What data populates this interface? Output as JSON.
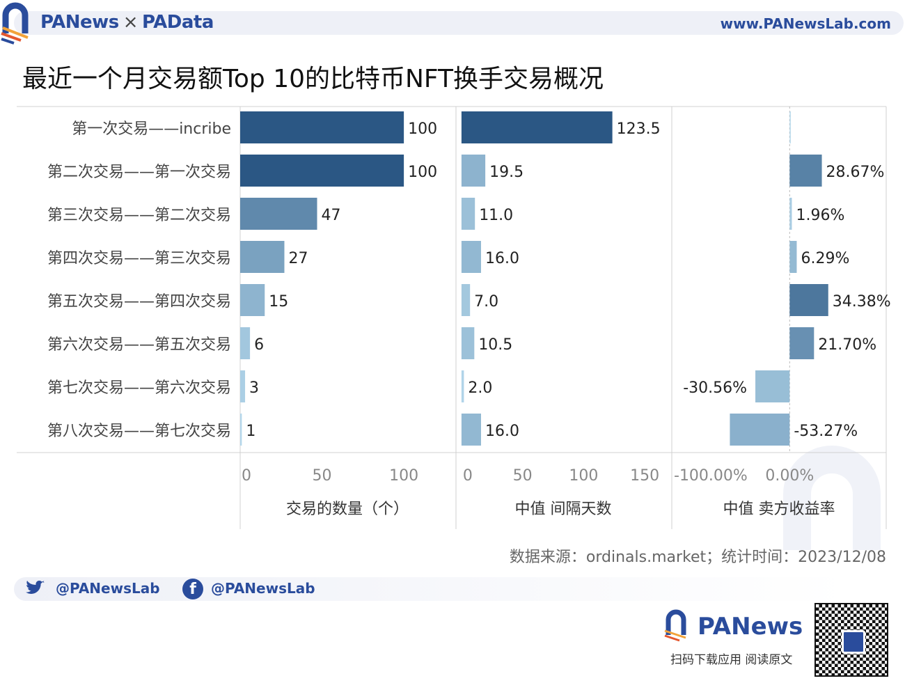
{
  "header": {
    "brand_left": "PANews",
    "separator": "×",
    "brand_right": "PAData",
    "website": "www.PANewsLab.com"
  },
  "title": "最近一个月交易额Top 10的比特币NFT换手交易概况",
  "watermarks": [
    "PANews",
    "PAData"
  ],
  "colors": {
    "dark": "#2b5784",
    "light": "#bde0f2",
    "brand": "#2a4c9c",
    "grid": "#d0d0d0"
  },
  "chart_data": {
    "type": "bar",
    "orientation": "horizontal",
    "categories": [
      "第一次交易——incribe",
      "第二次交易——第一次交易",
      "第三次交易——第二次交易",
      "第四次交易——第三次交易",
      "第五次交易——第四次交易",
      "第六次交易——第五次交易",
      "第七次交易——第六次交易",
      "第八次交易——第七次交易"
    ],
    "panels": [
      {
        "xlabel": "交易的数量（个）",
        "ticks": [
          0,
          50,
          100
        ],
        "tick_labels": [
          "0",
          "50",
          "100"
        ],
        "xlim": [
          0,
          131
        ],
        "values": [
          100,
          100,
          47,
          27,
          15,
          6,
          3,
          1
        ],
        "labels": [
          "100",
          "100",
          "47",
          "27",
          "15",
          "6",
          "3",
          "1"
        ]
      },
      {
        "xlabel": "中值 间隔天数",
        "ticks": [
          0,
          50,
          100,
          150
        ],
        "tick_labels": [
          "0",
          "50",
          "100",
          "150"
        ],
        "xlim": [
          -4.5,
          171
        ],
        "values": [
          123.5,
          19.5,
          11.0,
          16.0,
          7.0,
          10.5,
          2.0,
          16.0
        ],
        "labels": [
          "123.5",
          "19.5",
          "11.0",
          "16.0",
          "7.0",
          "10.5",
          "2.0",
          "16.0"
        ]
      },
      {
        "xlabel": "中值 卖方收益率",
        "ticks": [
          -100,
          0
        ],
        "tick_labels": [
          "-100.00%",
          "0.00%"
        ],
        "xlim": [
          -105,
          86
        ],
        "values": [
          0.5,
          28.67,
          1.96,
          6.29,
          34.38,
          21.7,
          -30.56,
          -53.27
        ],
        "labels": [
          "",
          "28.67%",
          "1.96%",
          "6.29%",
          "34.38%",
          "21.70%",
          "-30.56%",
          "-53.27%"
        ]
      }
    ]
  },
  "source": "数据来源：ordinals.market；统计时间：2023/12/08",
  "social": {
    "twitter": "@PANewsLab",
    "facebook": "@PANewsLab"
  },
  "footer": {
    "logo": "PANews",
    "caption": "扫码下载应用  阅读原文"
  }
}
